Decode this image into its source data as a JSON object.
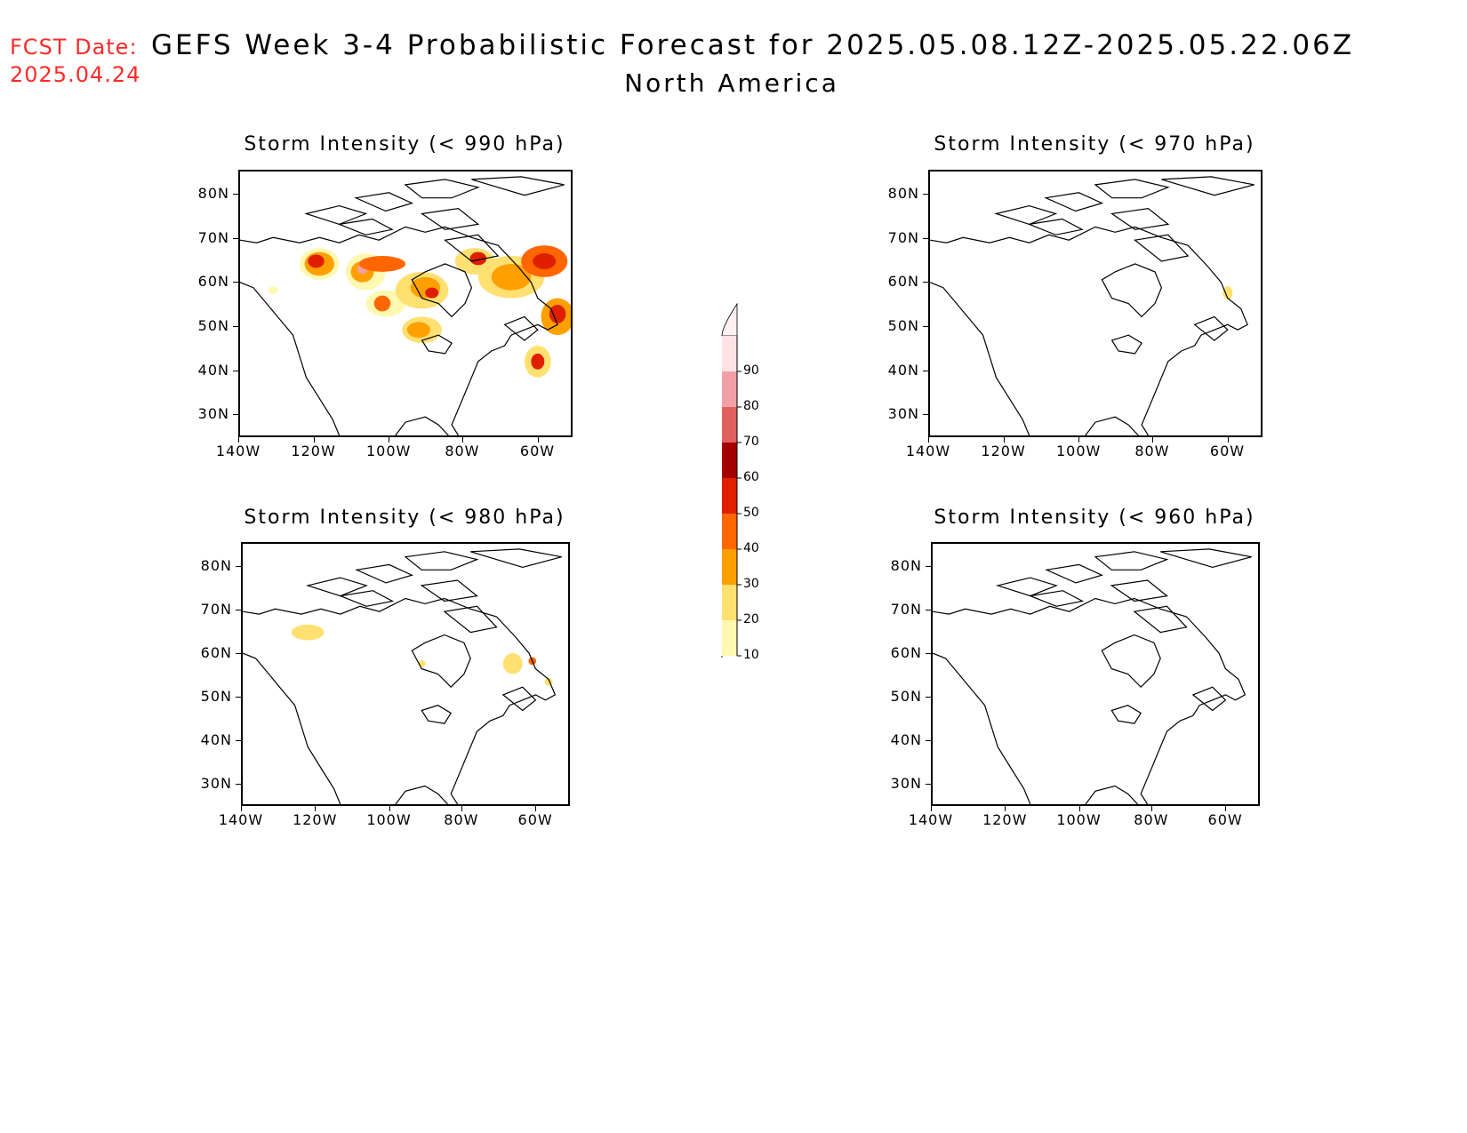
{
  "header": {
    "fcst_label": "FCST Date:",
    "fcst_date": "2025.04.24",
    "title": "GEFS Week 3-4 Probabilistic Forecast for 2025.05.08.12Z-2025.05.22.06Z",
    "subtitle": "North America"
  },
  "axes": {
    "lat_labels": [
      "80N",
      "70N",
      "60N",
      "50N",
      "40N",
      "30N"
    ],
    "lon_labels": [
      "140W",
      "120W",
      "100W",
      "80W",
      "60W"
    ]
  },
  "panels": [
    {
      "id": "p990",
      "title": "Storm Intensity (< 990 hPa)"
    },
    {
      "id": "p970",
      "title": "Storm Intensity (< 970 hPa)"
    },
    {
      "id": "p980",
      "title": "Storm Intensity (< 980 hPa)"
    },
    {
      "id": "p960",
      "title": "Storm Intensity (< 960 hPa)"
    }
  ],
  "colorbar": {
    "labels": [
      "90",
      "80",
      "70",
      "60",
      "50",
      "40",
      "30",
      "20",
      "10"
    ],
    "colors": [
      "#fde3e6",
      "#f2a0a6",
      "#e06060",
      "#a50000",
      "#e01e00",
      "#ff6600",
      "#ffa000",
      "#ffe070",
      "#fff8b0"
    ]
  },
  "colors": {
    "fcst": "#ff2a2a",
    "coast": "#000000"
  }
}
